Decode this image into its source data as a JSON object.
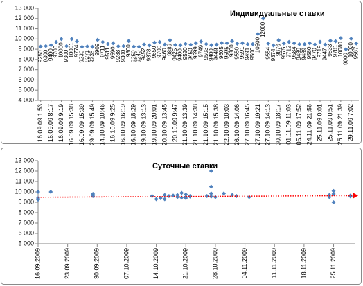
{
  "chart_data": [
    {
      "type": "dot",
      "title": "Индивидуальные ставки",
      "color": "#4f81bd",
      "categories": [
        "16.09.09 1:53",
        null,
        "16.09.09 8:17",
        null,
        "16.09.09 9:19",
        null,
        "16.09.09 15:38",
        null,
        "16.09.09 15:39",
        null,
        "29.09.09 15:49",
        null,
        "14.10.09 10:46",
        null,
        "16.10.09 9:25",
        null,
        "16.10.09 16:19",
        null,
        "16.10.09 18:29",
        null,
        "19.10.09 13:13",
        null,
        "19.10.09 20:01",
        null,
        "20.10.09 13:45",
        null,
        "20.10.09 9:47",
        null,
        "21.10.09 13:39",
        null,
        "21.10.09 14:38",
        null,
        "21.10.09 15:15",
        null,
        "21.10.09 15:38",
        null,
        "22.10.09 10:03",
        null,
        "26.10.09 14:06",
        null,
        "27.10.09 16:45",
        null,
        "27.10.09 19:21",
        null,
        "27.10.09 14:13",
        null,
        "30.10.09 18:17",
        null,
        "01.11.09 11:03",
        null,
        "05.11.09 17:52",
        null,
        "24.11.09 21:56",
        null,
        "25.11.09 0:01",
        null,
        "25.11.09 0:51",
        null,
        "25.11.09 21:39",
        null,
        "29.11.09 7:02",
        null
      ],
      "values": [
        9250,
        9300,
        9400,
        9700,
        10000,
        9300,
        10001,
        9774,
        9230,
        9271,
        9235,
        9909,
        9711,
        9511,
        9590,
        9288,
        9300,
        9800,
        9250,
        9240,
        9452,
        9378,
        9650,
        9700,
        9460,
        9889,
        9425,
        9400,
        9520,
        9450,
        9599,
        9749,
        9503,
        9400,
        9449,
        9605,
        9595,
        9800,
        9550,
        9591,
        9491,
        9500,
        10500,
        12000,
        9554,
        9374,
        9876,
        9575,
        9712,
        9584,
        9489,
        9489,
        9580,
        9470,
        9719,
        9447,
        9833,
        9781,
        10080,
        9000,
        10020,
        9567
      ],
      "ylim": [
        4000,
        13000
      ],
      "yticks": [
        {
          "value": 4000,
          "label": "4 000"
        },
        {
          "value": 5000,
          "label": "5 000"
        },
        {
          "value": 6000,
          "label": "6 000"
        },
        {
          "value": 7000,
          "label": "7 000"
        },
        {
          "value": 8000,
          "label": "8 000"
        },
        {
          "value": 9000,
          "label": "9 000"
        },
        {
          "value": 10000,
          "label": "10 000"
        },
        {
          "value": 11000,
          "label": "11 000"
        },
        {
          "value": 12000,
          "label": "12 000"
        },
        {
          "value": 13000,
          "label": "13 000"
        }
      ]
    },
    {
      "type": "scatter",
      "title": "Суточные ставки",
      "color": "#4f81bd",
      "x": [
        "16.09.2009",
        "16.09.2009",
        "16.09.2009",
        "19.09.2009",
        "29.09.2009",
        "29.09.2009",
        "13.10.2009",
        "14.10.2009",
        "15.10.2009",
        "16.10.2009",
        "16.10.2009",
        "17.10.2009",
        "18.10.2009",
        "19.10.2009",
        "19.10.2009",
        "20.10.2009",
        "20.10.2009",
        "21.10.2009",
        "21.10.2009",
        "21.10.2009",
        "22.10.2009",
        "22.10.2009",
        "26.10.2009",
        "27.10.2009",
        "27.10.2009",
        "27.10.2009",
        "27.10.2009",
        "28.10.2009",
        "30.10.2009",
        "01.11.2009",
        "02.11.2009",
        "05.11.2009",
        "24.11.2009",
        "24.11.2009",
        "25.11.2009",
        "25.11.2009",
        "25.11.2009",
        "29.11.2009",
        "29.11.2009"
      ],
      "values": [
        10000,
        9400,
        9250,
        10000,
        9800,
        9600,
        9600,
        9300,
        9400,
        9700,
        9300,
        9600,
        9650,
        9700,
        9500,
        9900,
        9450,
        9750,
        9500,
        9400,
        9550,
        9600,
        9600,
        12000,
        10500,
        9550,
        9850,
        9500,
        9850,
        9700,
        9600,
        9500,
        9700,
        9500,
        10080,
        9000,
        9800,
        9567,
        9650
      ],
      "trend": {
        "color": "#ff0000",
        "values": [
          9480,
          9640
        ]
      },
      "xlim": [
        "16.09.2009",
        "30.11.2009"
      ],
      "xticks": [
        "16.09.2009",
        "23.09.2009",
        "30.09.2009",
        "07.10.2009",
        "14.10.2009",
        "21.10.2009",
        "28.10.2009",
        "04.11.2009",
        "11.11.2009",
        "18.11.2009",
        "25.11.2009"
      ],
      "ylim": [
        5000,
        13000
      ],
      "yticks": [
        {
          "value": 5000,
          "label": "5 000"
        },
        {
          "value": 6000,
          "label": "6 000"
        },
        {
          "value": 7000,
          "label": "7 000"
        },
        {
          "value": 8000,
          "label": "8 000"
        },
        {
          "value": 9000,
          "label": "9 000"
        },
        {
          "value": 10000,
          "label": "10 000"
        },
        {
          "value": 11000,
          "label": "11 000"
        },
        {
          "value": 12000,
          "label": "12 000"
        },
        {
          "value": 13000,
          "label": "13 000"
        }
      ]
    }
  ]
}
